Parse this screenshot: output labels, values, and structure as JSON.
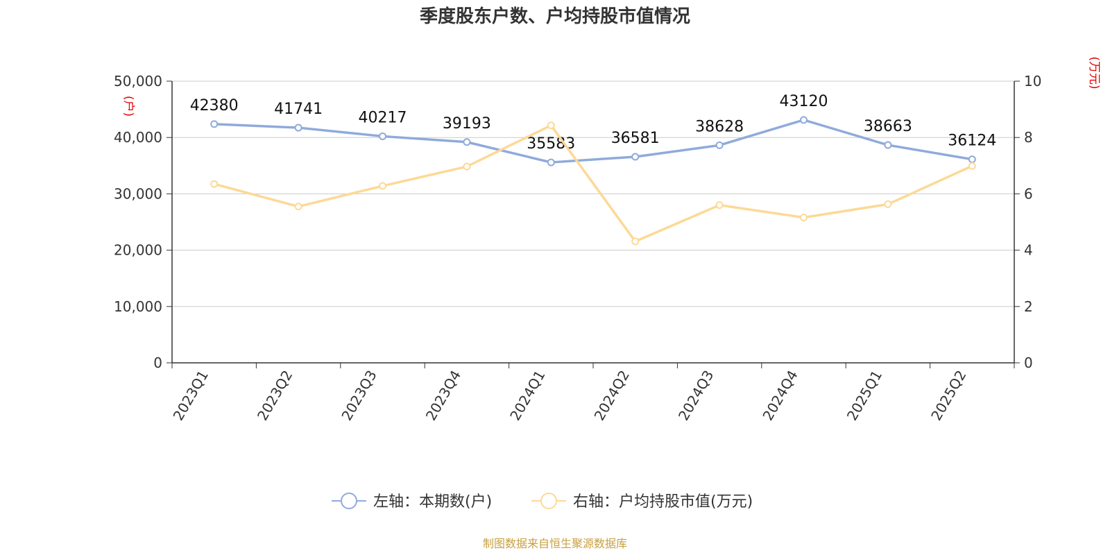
{
  "chart_data": {
    "type": "line",
    "title": "季度股东户数、户均持股市值情况",
    "categories": [
      "2023Q1",
      "2023Q2",
      "2023Q3",
      "2023Q4",
      "2024Q1",
      "2024Q2",
      "2024Q3",
      "2024Q4",
      "2025Q1",
      "2025Q2"
    ],
    "left_axis": {
      "unit": "(户)",
      "ylim": [
        0,
        50000
      ],
      "ticks": [
        "0",
        "10,000",
        "20,000",
        "30,000",
        "40,000",
        "50,000"
      ]
    },
    "right_axis": {
      "unit": "(万元)",
      "ylim": [
        0,
        10
      ],
      "ticks": [
        "0",
        "2",
        "4",
        "6",
        "8",
        "10"
      ]
    },
    "series": [
      {
        "name": "左轴：本期数(户)",
        "axis": "left",
        "color": "#8faadc",
        "values": [
          42380,
          41741,
          40217,
          39193,
          35583,
          36581,
          38628,
          43120,
          38663,
          36124
        ],
        "labels": [
          "42380",
          "41741",
          "40217",
          "39193",
          "35583",
          "36581",
          "38628",
          "43120",
          "38663",
          "36124"
        ]
      },
      {
        "name": "右轴：户均持股市值(万元)",
        "axis": "right",
        "color": "#fdd996",
        "values": [
          6.35,
          5.55,
          6.28,
          6.97,
          8.43,
          4.31,
          5.6,
          5.16,
          5.63,
          6.99
        ]
      }
    ],
    "grid": true,
    "legend": "bottom-center"
  },
  "source": "制图数据来自恒生聚源数据库"
}
